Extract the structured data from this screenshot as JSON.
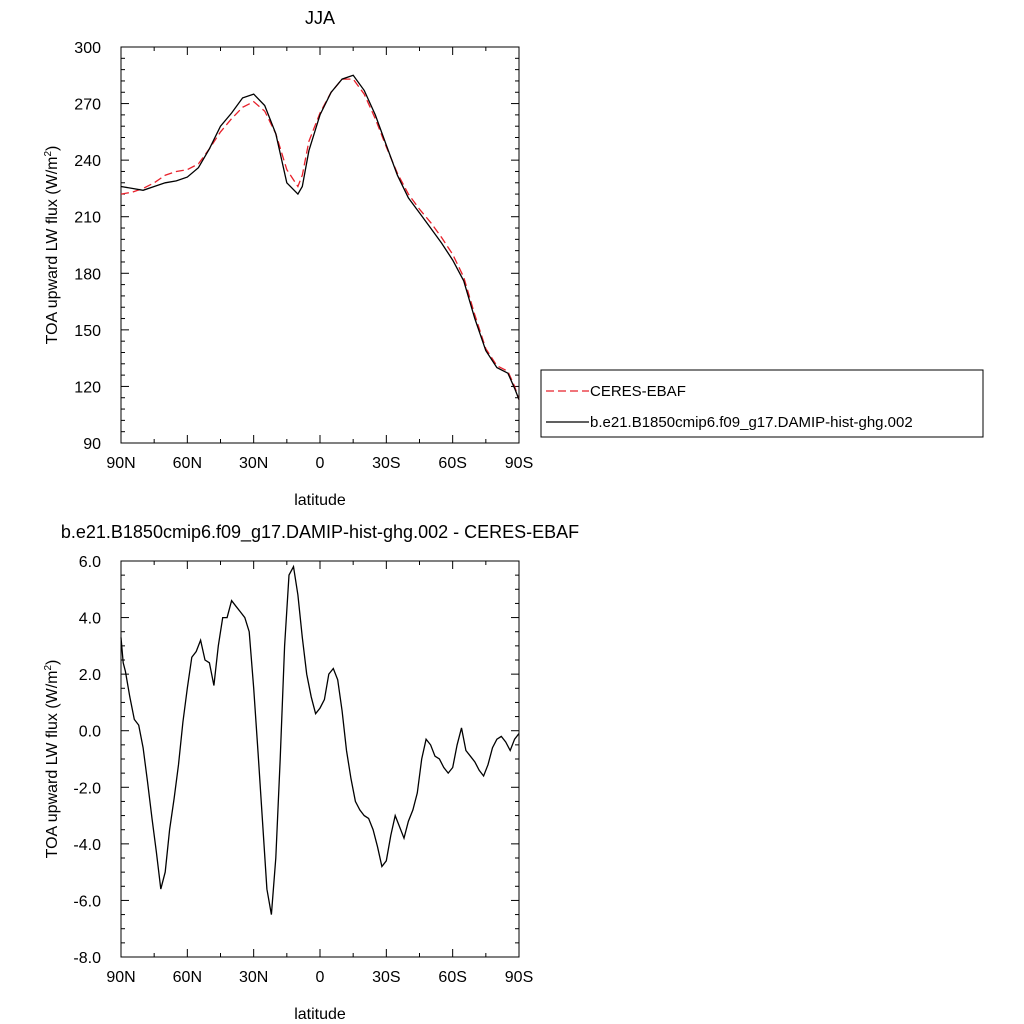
{
  "chart_data": [
    {
      "type": "line",
      "title": "JJA",
      "xlabel": "latitude",
      "ylabel": "TOA upward LW flux (W/m",
      "ylabel_sup": "2",
      "ylabel_close": ")",
      "xlim": [
        90,
        -90
      ],
      "ylim": [
        90,
        300
      ],
      "x_ticks": [
        {
          "value": 90,
          "label": "90N"
        },
        {
          "value": 60,
          "label": "60N"
        },
        {
          "value": 30,
          "label": "30N"
        },
        {
          "value": 0,
          "label": "0"
        },
        {
          "value": -30,
          "label": "30S"
        },
        {
          "value": -60,
          "label": "60S"
        },
        {
          "value": -90,
          "label": "90S"
        }
      ],
      "y_ticks": [
        {
          "value": 300,
          "label": "300"
        },
        {
          "value": 270,
          "label": "270"
        },
        {
          "value": 240,
          "label": "240"
        },
        {
          "value": 210,
          "label": "210"
        },
        {
          "value": 180,
          "label": "180"
        },
        {
          "value": 150,
          "label": "150"
        },
        {
          "value": 120,
          "label": "120"
        },
        {
          "value": 90,
          "label": "90"
        }
      ],
      "legend": {
        "placement": "right"
      },
      "series": [
        {
          "name": "CERES-EBAF",
          "color": "#e8202a",
          "dash": true,
          "x": [
            90,
            85,
            80,
            75,
            70,
            65,
            60,
            55,
            50,
            45,
            40,
            35,
            30,
            25,
            20,
            15,
            10,
            8,
            5,
            0,
            -5,
            -10,
            -15,
            -20,
            -25,
            -30,
            -35,
            -40,
            -45,
            -50,
            -55,
            -60,
            -65,
            -70,
            -75,
            -80,
            -85,
            -88,
            -90
          ],
          "y": [
            222,
            223,
            225,
            228,
            232,
            234,
            235,
            238,
            246,
            255,
            262,
            268,
            271,
            266,
            254,
            235,
            226,
            232,
            250,
            265,
            276,
            283,
            283,
            275,
            262,
            247,
            233,
            222,
            214,
            207,
            199,
            190,
            178,
            158,
            140,
            131,
            128,
            120,
            113
          ]
        },
        {
          "name": "b.e21.B1850cmip6.f09_g17.DAMIP-hist-ghg.002",
          "color": "#000000",
          "dash": false,
          "x": [
            90,
            85,
            80,
            75,
            70,
            65,
            60,
            55,
            50,
            45,
            40,
            35,
            30,
            25,
            20,
            15,
            10,
            8,
            5,
            0,
            -5,
            -10,
            -15,
            -20,
            -25,
            -30,
            -35,
            -40,
            -45,
            -50,
            -55,
            -60,
            -65,
            -70,
            -75,
            -80,
            -85,
            -88,
            -90
          ],
          "y": [
            226,
            225,
            224,
            226,
            228,
            229,
            231,
            236,
            246,
            258,
            265,
            273,
            275,
            269,
            254,
            228,
            222,
            226,
            245,
            264,
            276,
            283,
            285,
            277,
            264,
            248,
            232,
            220,
            212,
            204,
            196,
            187,
            176,
            156,
            139,
            130,
            127,
            119,
            113
          ]
        }
      ]
    },
    {
      "type": "line",
      "title": "b.e21.B1850cmip6.f09_g17.DAMIP-hist-ghg.002 - CERES-EBAF",
      "xlabel": "latitude",
      "ylabel": "TOA upward LW flux (W/m",
      "ylabel_sup": "2",
      "ylabel_close": ")",
      "xlim": [
        90,
        -90
      ],
      "ylim": [
        -8,
        6
      ],
      "x_ticks": [
        {
          "value": 90,
          "label": "90N"
        },
        {
          "value": 60,
          "label": "60N"
        },
        {
          "value": 30,
          "label": "30N"
        },
        {
          "value": 0,
          "label": "0"
        },
        {
          "value": -30,
          "label": "30S"
        },
        {
          "value": -60,
          "label": "60S"
        },
        {
          "value": -90,
          "label": "90S"
        }
      ],
      "y_ticks": [
        {
          "value": 6,
          "label": "6.0"
        },
        {
          "value": 4,
          "label": "4.0"
        },
        {
          "value": 2,
          "label": "2.0"
        },
        {
          "value": 0,
          "label": "0.0"
        },
        {
          "value": -2,
          "label": "-2.0"
        },
        {
          "value": -4,
          "label": "-4.0"
        },
        {
          "value": -6,
          "label": "-6.0"
        },
        {
          "value": -8,
          "label": "-8.0"
        }
      ],
      "series": [
        {
          "name": "",
          "color": "#000000",
          "dash": false,
          "x": [
            90,
            89,
            88,
            86,
            84,
            82,
            80,
            78,
            76,
            74,
            72,
            70,
            68,
            66,
            64,
            62,
            60,
            58,
            56,
            54,
            52,
            50,
            48,
            46,
            44,
            42,
            40,
            38,
            36,
            34,
            32,
            30,
            28,
            26,
            24,
            22,
            20,
            18,
            16,
            14,
            12,
            10,
            8,
            6,
            4,
            2,
            0,
            -2,
            -4,
            -6,
            -8,
            -10,
            -12,
            -14,
            -16,
            -18,
            -20,
            -22,
            -24,
            -26,
            -28,
            -30,
            -32,
            -34,
            -36,
            -38,
            -40,
            -42,
            -44,
            -46,
            -48,
            -50,
            -52,
            -54,
            -56,
            -58,
            -60,
            -62,
            -64,
            -66,
            -68,
            -70,
            -72,
            -74,
            -76,
            -78,
            -80,
            -82,
            -84,
            -86,
            -88,
            -90
          ],
          "y": [
            3.3,
            2.4,
            2.1,
            1.2,
            0.4,
            0.2,
            -0.6,
            -1.8,
            -3.1,
            -4.3,
            -5.6,
            -5.0,
            -3.5,
            -2.4,
            -1.2,
            0.3,
            1.5,
            2.6,
            2.8,
            3.2,
            2.5,
            2.4,
            1.6,
            3.0,
            4.0,
            4.0,
            4.6,
            4.4,
            4.2,
            4.0,
            3.5,
            1.5,
            -0.8,
            -3.2,
            -5.6,
            -6.5,
            -4.5,
            -1.0,
            3.0,
            5.5,
            5.8,
            4.8,
            3.3,
            2.0,
            1.2,
            0.6,
            0.8,
            1.1,
            2.0,
            2.2,
            1.8,
            0.7,
            -0.7,
            -1.7,
            -2.5,
            -2.8,
            -3.0,
            -3.1,
            -3.5,
            -4.1,
            -4.8,
            -4.6,
            -3.7,
            -3.0,
            -3.4,
            -3.8,
            -3.2,
            -2.8,
            -2.2,
            -1.0,
            -0.3,
            -0.5,
            -0.9,
            -1.0,
            -1.3,
            -1.5,
            -1.3,
            -0.5,
            0.1,
            -0.7,
            -0.9,
            -1.1,
            -1.4,
            -1.6,
            -1.2,
            -0.6,
            -0.3,
            -0.2,
            -0.4,
            -0.7,
            -0.3,
            -0.1
          ]
        }
      ]
    }
  ]
}
